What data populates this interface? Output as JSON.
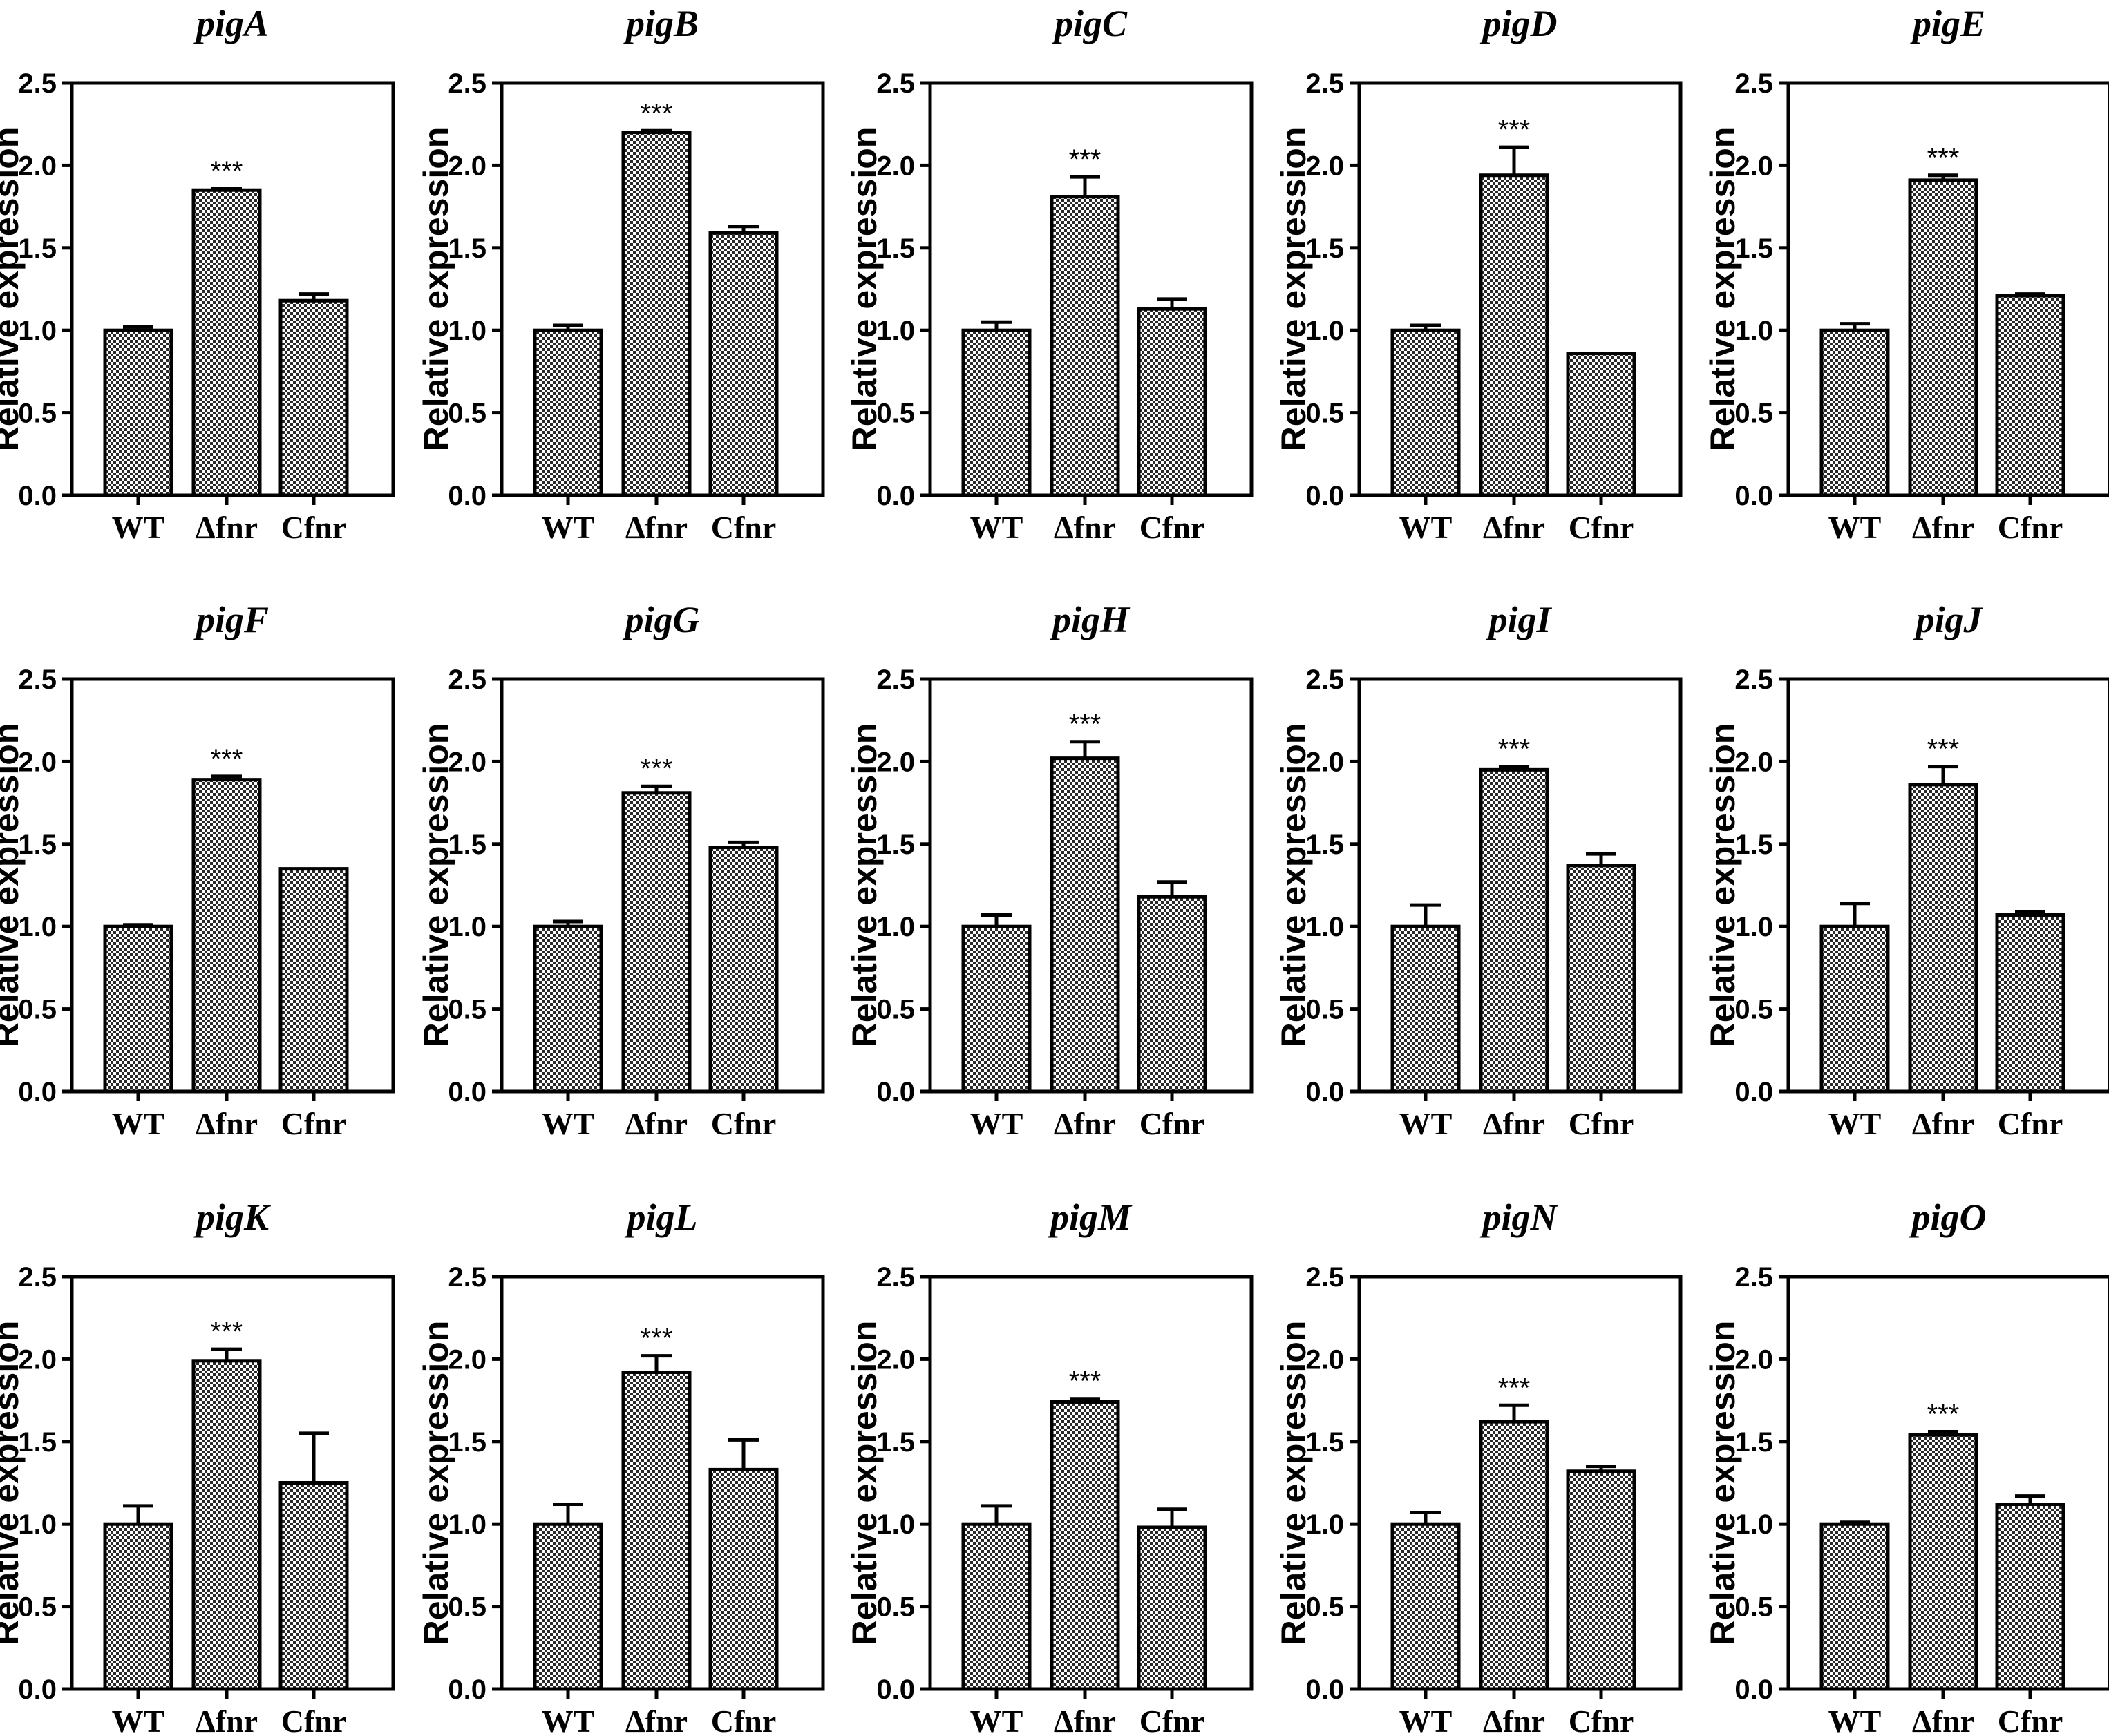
{
  "chart_data": [
    {
      "type": "bar",
      "title": "pigA",
      "ylabel": "Relative expression",
      "xlabel": "",
      "ylim": [
        0,
        2.5
      ],
      "yticks": [
        "0.0",
        "0.5",
        "1.0",
        "1.5",
        "2.0",
        "2.5"
      ],
      "categories": [
        "WT",
        "Δfnr",
        "Cfnr"
      ],
      "values": [
        1.0,
        1.85,
        1.18
      ],
      "errors": [
        0.02,
        0.01,
        0.04
      ],
      "annotations": [
        {
          "category": "Δfnr",
          "text": "***"
        }
      ],
      "pattern": "checkered"
    },
    {
      "type": "bar",
      "title": "pigB",
      "ylabel": "Relative expression",
      "xlabel": "",
      "ylim": [
        0,
        2.5
      ],
      "yticks": [
        "0.0",
        "0.5",
        "1.0",
        "1.5",
        "2.0",
        "2.5"
      ],
      "categories": [
        "WT",
        "Δfnr",
        "Cfnr"
      ],
      "values": [
        1.0,
        2.2,
        1.59
      ],
      "errors": [
        0.03,
        0.01,
        0.04
      ],
      "annotations": [
        {
          "category": "Δfnr",
          "text": "***"
        }
      ],
      "pattern": "checkered"
    },
    {
      "type": "bar",
      "title": "pigC",
      "ylabel": "Relative expression",
      "xlabel": "",
      "ylim": [
        0,
        2.5
      ],
      "yticks": [
        "0.0",
        "0.5",
        "1.0",
        "1.5",
        "2.0",
        "2.5"
      ],
      "categories": [
        "WT",
        "Δfnr",
        "Cfnr"
      ],
      "values": [
        1.0,
        1.81,
        1.13
      ],
      "errors": [
        0.05,
        0.12,
        0.06
      ],
      "annotations": [
        {
          "category": "Δfnr",
          "text": "***"
        }
      ],
      "pattern": "checkered"
    },
    {
      "type": "bar",
      "title": "pigD",
      "ylabel": "Relative expression",
      "xlabel": "",
      "ylim": [
        0,
        2.5
      ],
      "yticks": [
        "0.0",
        "0.5",
        "1.0",
        "1.5",
        "2.0",
        "2.5"
      ],
      "categories": [
        "WT",
        "Δfnr",
        "Cfnr"
      ],
      "values": [
        1.0,
        1.94,
        0.86
      ],
      "errors": [
        0.03,
        0.17,
        0.0
      ],
      "annotations": [
        {
          "category": "Δfnr",
          "text": "***"
        }
      ],
      "pattern": "checkered"
    },
    {
      "type": "bar",
      "title": "pigE",
      "ylabel": "Relative expression",
      "xlabel": "",
      "ylim": [
        0,
        2.5
      ],
      "yticks": [
        "0.0",
        "0.5",
        "1.0",
        "1.5",
        "2.0",
        "2.5"
      ],
      "categories": [
        "WT",
        "Δfnr",
        "Cfnr"
      ],
      "values": [
        1.0,
        1.91,
        1.21
      ],
      "errors": [
        0.04,
        0.03,
        0.01
      ],
      "annotations": [
        {
          "category": "Δfnr",
          "text": "***"
        }
      ],
      "pattern": "checkered"
    },
    {
      "type": "bar",
      "title": "pigF",
      "ylabel": "Relative expression",
      "xlabel": "",
      "ylim": [
        0,
        2.5
      ],
      "yticks": [
        "0.0",
        "0.5",
        "1.0",
        "1.5",
        "2.0",
        "2.5"
      ],
      "categories": [
        "WT",
        "Δfnr",
        "Cfnr"
      ],
      "values": [
        1.0,
        1.89,
        1.35
      ],
      "errors": [
        0.01,
        0.02,
        0.0
      ],
      "annotations": [
        {
          "category": "Δfnr",
          "text": "***"
        }
      ],
      "pattern": "checkered"
    },
    {
      "type": "bar",
      "title": "pigG",
      "ylabel": "Relative expression",
      "xlabel": "",
      "ylim": [
        0,
        2.5
      ],
      "yticks": [
        "0.0",
        "0.5",
        "1.0",
        "1.5",
        "2.0",
        "2.5"
      ],
      "categories": [
        "WT",
        "Δfnr",
        "Cfnr"
      ],
      "values": [
        1.0,
        1.81,
        1.48
      ],
      "errors": [
        0.03,
        0.04,
        0.03
      ],
      "annotations": [
        {
          "category": "Δfnr",
          "text": "***"
        }
      ],
      "pattern": "checkered"
    },
    {
      "type": "bar",
      "title": "pigH",
      "ylabel": "Relative expression",
      "xlabel": "",
      "ylim": [
        0,
        2.5
      ],
      "yticks": [
        "0.0",
        "0.5",
        "1.0",
        "1.5",
        "2.0",
        "2.5"
      ],
      "categories": [
        "WT",
        "Δfnr",
        "Cfnr"
      ],
      "values": [
        1.0,
        2.02,
        1.18
      ],
      "errors": [
        0.07,
        0.1,
        0.09
      ],
      "annotations": [
        {
          "category": "Δfnr",
          "text": "***"
        }
      ],
      "pattern": "checkered"
    },
    {
      "type": "bar",
      "title": "pigI",
      "ylabel": "Relative expression",
      "xlabel": "",
      "ylim": [
        0,
        2.5
      ],
      "yticks": [
        "0.0",
        "0.5",
        "1.0",
        "1.5",
        "2.0",
        "2.5"
      ],
      "categories": [
        "WT",
        "Δfnr",
        "Cfnr"
      ],
      "values": [
        1.0,
        1.95,
        1.37
      ],
      "errors": [
        0.13,
        0.02,
        0.07
      ],
      "annotations": [
        {
          "category": "Δfnr",
          "text": "***"
        }
      ],
      "pattern": "checkered"
    },
    {
      "type": "bar",
      "title": "pigJ",
      "ylabel": "Relative expression",
      "xlabel": "",
      "ylim": [
        0,
        2.5
      ],
      "yticks": [
        "0.0",
        "0.5",
        "1.0",
        "1.5",
        "2.0",
        "2.5"
      ],
      "categories": [
        "WT",
        "Δfnr",
        "Cfnr"
      ],
      "values": [
        1.0,
        1.86,
        1.07
      ],
      "errors": [
        0.14,
        0.11,
        0.02
      ],
      "annotations": [
        {
          "category": "Δfnr",
          "text": "***"
        }
      ],
      "pattern": "checkered"
    },
    {
      "type": "bar",
      "title": "pigK",
      "ylabel": "Relative expression",
      "xlabel": "",
      "ylim": [
        0,
        2.5
      ],
      "yticks": [
        "0.0",
        "0.5",
        "1.0",
        "1.5",
        "2.0",
        "2.5"
      ],
      "categories": [
        "WT",
        "Δfnr",
        "Cfnr"
      ],
      "values": [
        1.0,
        1.99,
        1.25
      ],
      "errors": [
        0.11,
        0.07,
        0.3
      ],
      "annotations": [
        {
          "category": "Δfnr",
          "text": "***"
        }
      ],
      "pattern": "checkered"
    },
    {
      "type": "bar",
      "title": "pigL",
      "ylabel": "Relative expression",
      "xlabel": "",
      "ylim": [
        0,
        2.5
      ],
      "yticks": [
        "0.0",
        "0.5",
        "1.0",
        "1.5",
        "2.0",
        "2.5"
      ],
      "categories": [
        "WT",
        "Δfnr",
        "Cfnr"
      ],
      "values": [
        1.0,
        1.92,
        1.33
      ],
      "errors": [
        0.12,
        0.1,
        0.18
      ],
      "annotations": [
        {
          "category": "Δfnr",
          "text": "***"
        }
      ],
      "pattern": "checkered"
    },
    {
      "type": "bar",
      "title": "pigM",
      "ylabel": "Relative expression",
      "xlabel": "",
      "ylim": [
        0,
        2.5
      ],
      "yticks": [
        "0.0",
        "0.5",
        "1.0",
        "1.5",
        "2.0",
        "2.5"
      ],
      "categories": [
        "WT",
        "Δfnr",
        "Cfnr"
      ],
      "values": [
        1.0,
        1.74,
        0.98
      ],
      "errors": [
        0.11,
        0.02,
        0.11
      ],
      "annotations": [
        {
          "category": "Δfnr",
          "text": "***"
        }
      ],
      "pattern": "checkered"
    },
    {
      "type": "bar",
      "title": "pigN",
      "ylabel": "Relative expression",
      "xlabel": "",
      "ylim": [
        0,
        2.5
      ],
      "yticks": [
        "0.0",
        "0.5",
        "1.0",
        "1.5",
        "2.0",
        "2.5"
      ],
      "categories": [
        "WT",
        "Δfnr",
        "Cfnr"
      ],
      "values": [
        1.0,
        1.62,
        1.32
      ],
      "errors": [
        0.07,
        0.1,
        0.03
      ],
      "annotations": [
        {
          "category": "Δfnr",
          "text": "***"
        }
      ],
      "pattern": "checkered"
    },
    {
      "type": "bar",
      "title": "pigO",
      "ylabel": "Relative expression",
      "xlabel": "",
      "ylim": [
        0,
        2.5
      ],
      "yticks": [
        "0.0",
        "0.5",
        "1.0",
        "1.5",
        "2.0",
        "2.5"
      ],
      "categories": [
        "WT",
        "Δfnr",
        "Cfnr"
      ],
      "values": [
        1.0,
        1.54,
        1.12
      ],
      "errors": [
        0.01,
        0.02,
        0.05
      ],
      "annotations": [
        {
          "category": "Δfnr",
          "text": "***"
        }
      ],
      "pattern": "checkered"
    }
  ]
}
